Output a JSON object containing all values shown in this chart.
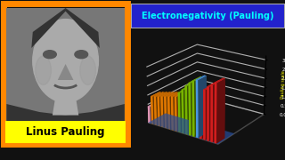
{
  "title": "Electronegativity (Pauling)",
  "ylabel": "Pauling scale",
  "background_color": "#111111",
  "title_bg": "#2222cc",
  "title_color": "#00ffff",
  "title_border": "#aaaaaa",
  "photo_border_color": "#ff8800",
  "photo_bg": "#555555",
  "name_label": "Linus Pauling",
  "name_label_bg": "#ffff00",
  "name_label_color": "#000000",
  "bar_groups": [
    {
      "color": "#ffaacc",
      "values": [
        0.9
      ]
    },
    {
      "color": "#ff8800",
      "values": [
        1.5,
        1.55,
        1.6,
        1.65,
        1.7,
        1.75,
        1.8,
        1.85
      ]
    },
    {
      "color": "#88cc00",
      "values": [
        2.1,
        2.3,
        2.55,
        2.75,
        2.9
      ]
    },
    {
      "color": "#55aaff",
      "values": [
        3.0
      ]
    },
    {
      "color": "#ee2222",
      "values": [
        2.4,
        2.6,
        2.8,
        2.95,
        3.1
      ]
    }
  ],
  "ylim": [
    0,
    3.2
  ],
  "yticks": [
    0.0,
    0.5,
    1.0,
    1.5,
    2.0,
    2.5,
    3.0
  ],
  "chart_bg": "#060612",
  "floor_color": "#3366cc",
  "grid_color": "#777777",
  "bar_width": 0.55,
  "bar_depth": 0.5
}
